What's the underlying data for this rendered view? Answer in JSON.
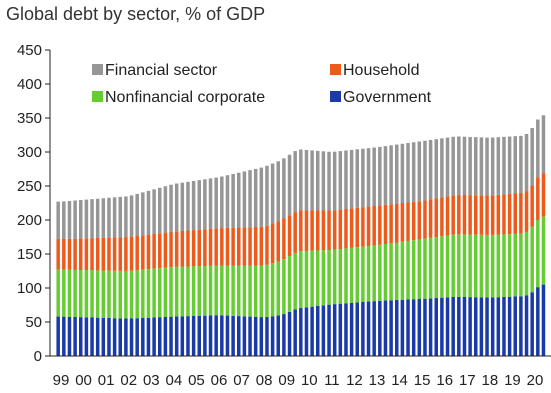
{
  "chart_data": {
    "type": "bar",
    "stacked": true,
    "title": "Global debt by sector, % of GDP",
    "xlabel": "",
    "ylabel": "",
    "ylim": [
      0,
      450
    ],
    "y_ticks": [
      "0",
      "50",
      "100",
      "150",
      "200",
      "250",
      "300",
      "350",
      "400",
      "450"
    ],
    "x_ticks": [
      "99",
      "00",
      "01",
      "02",
      "03",
      "04",
      "05",
      "06",
      "07",
      "08",
      "09",
      "10",
      "11",
      "12",
      "13",
      "14",
      "15",
      "16",
      "17",
      "18",
      "19",
      "20"
    ],
    "grid": false,
    "legend_placement": "top",
    "colors": {
      "Government": "#1a3aa8",
      "Nonfinancial corporate": "#66cc33",
      "Household": "#ec5a1c",
      "Financial sector": "#969696"
    },
    "legend": [
      "Financial sector",
      "Household",
      "Nonfinancial corporate",
      "Government"
    ],
    "quarterly_points": {
      "x": [
        "1999",
        "2002",
        "2004",
        "2006",
        "2008",
        "2008.75",
        "2009.5",
        "2011",
        "2013",
        "2015",
        "2016.5",
        "2018",
        "2019.5",
        "2019.75",
        "2020.25",
        "2020.5"
      ],
      "Government": [
        58,
        55,
        58,
        60,
        57,
        60,
        70,
        76,
        81,
        84,
        87,
        86,
        88,
        90,
        105,
        105
      ],
      "Nonfinancial corporate": [
        69,
        70,
        73,
        73,
        76,
        80,
        84,
        80,
        82,
        88,
        92,
        92,
        92,
        95,
        100,
        100
      ],
      "Household": [
        45,
        50,
        52,
        55,
        57,
        60,
        60,
        58,
        58,
        56,
        58,
        58,
        60,
        60,
        64,
        64
      ],
      "Financial sector": [
        55,
        60,
        70,
        75,
        88,
        88,
        90,
        86,
        86,
        88,
        86,
        85,
        84,
        84,
        85,
        85
      ]
    }
  }
}
